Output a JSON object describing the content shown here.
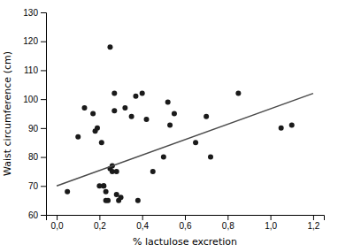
{
  "chart_data": {
    "type": "scatter",
    "xlabel": "% lactulose excretion",
    "ylabel": "Waist circumference (cm)",
    "series": [
      {
        "type": "scatter",
        "color": "#1a1a1a",
        "x": [
          0.05,
          0.1,
          0.13,
          0.17,
          0.18,
          0.19,
          0.2,
          0.21,
          0.22,
          0.22,
          0.23,
          0.23,
          0.24,
          0.25,
          0.25,
          0.26,
          0.26,
          0.27,
          0.27,
          0.28,
          0.28,
          0.29,
          0.3,
          0.32,
          0.35,
          0.37,
          0.38,
          0.4,
          0.42,
          0.45,
          0.5,
          0.52,
          0.53,
          0.55,
          0.65,
          0.7,
          0.72,
          0.85,
          1.05,
          1.1
        ],
        "values": [
          68,
          87,
          97,
          95,
          89,
          90,
          70,
          85,
          70,
          70,
          68,
          65,
          65,
          118,
          76,
          77,
          75,
          96,
          102,
          75,
          67,
          65,
          66,
          97,
          94,
          101,
          65,
          102,
          93,
          75,
          80,
          99,
          91,
          95,
          85,
          94,
          80,
          102,
          90,
          91
        ]
      },
      {
        "type": "line",
        "color": "#4a4a4a",
        "x": [
          0.0,
          1.2
        ],
        "values": [
          70.0,
          102.0
        ]
      }
    ],
    "xlim": [
      -0.05,
      1.25
    ],
    "ylim": [
      60,
      130
    ],
    "xticks": [
      {
        "value": 0.0,
        "label": "0,0"
      },
      {
        "value": 0.2,
        "label": "0,2"
      },
      {
        "value": 0.4,
        "label": "0,4"
      },
      {
        "value": 0.6,
        "label": "0,6"
      },
      {
        "value": 0.8,
        "label": "0,8"
      },
      {
        "value": 1.0,
        "label": "1,0"
      },
      {
        "value": 1.2,
        "label": "1,2"
      }
    ],
    "yticks": [
      60,
      70,
      80,
      90,
      100,
      110,
      120,
      130
    ]
  }
}
